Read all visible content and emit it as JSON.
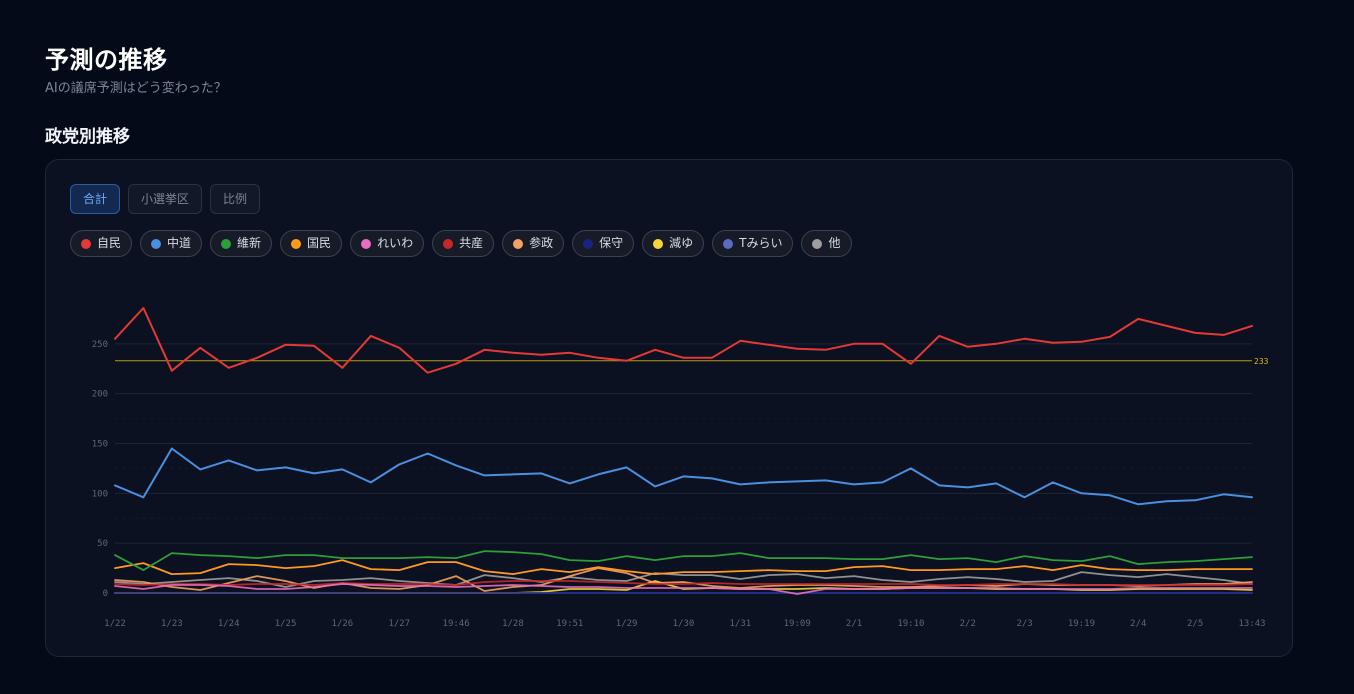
{
  "header": {
    "title": "予測の推移",
    "subtitle": "AIの議席予測はどう変わった？"
  },
  "section": {
    "title": "政党別推移"
  },
  "tabs": [
    {
      "label": "合計",
      "active": true
    },
    {
      "label": "小選挙区",
      "active": false
    },
    {
      "label": "比例",
      "active": false
    }
  ],
  "chart_data": {
    "type": "line",
    "ylim": [
      0,
      300
    ],
    "yticks": [
      0,
      50,
      100,
      150,
      200,
      250
    ],
    "reference_line": {
      "value": 233,
      "label": "233",
      "color": "#b89b12"
    },
    "x_tick_labels": [
      "1/22",
      "1/23",
      "1/24",
      "1/25",
      "1/26",
      "1/27",
      "19:46",
      "1/28",
      "19:51",
      "1/29",
      "1/30",
      "1/31",
      "19:09",
      "2/1",
      "19:10",
      "2/2",
      "2/3",
      "19:19",
      "2/4",
      "2/5",
      "13:43"
    ],
    "grid": true,
    "series": [
      {
        "name": "自民",
        "color": "#e53935",
        "values": [
          255,
          286,
          223,
          246,
          226,
          236,
          249,
          248,
          226,
          258,
          246,
          221,
          230,
          244,
          241,
          239,
          241,
          236,
          233,
          244,
          236,
          236,
          253,
          249,
          245,
          244,
          250,
          250,
          230,
          258,
          247,
          250,
          255,
          251,
          252,
          257,
          275,
          268,
          261,
          259,
          268
        ]
      },
      {
        "name": "中道",
        "color": "#4a8fe0",
        "values": [
          108,
          96,
          145,
          124,
          133,
          123,
          126,
          120,
          124,
          111,
          129,
          140,
          128,
          118,
          119,
          120,
          110,
          119,
          126,
          107,
          117,
          115,
          109,
          111,
          112,
          113,
          109,
          111,
          125,
          108,
          106,
          110,
          96,
          111,
          100,
          98,
          89,
          92,
          93,
          99,
          96
        ]
      },
      {
        "name": "維新",
        "color": "#2e9e3a",
        "values": [
          38,
          23,
          40,
          38,
          37,
          35,
          38,
          38,
          35,
          35,
          35,
          36,
          35,
          42,
          41,
          39,
          33,
          32,
          37,
          33,
          37,
          37,
          40,
          35,
          35,
          35,
          34,
          34,
          38,
          34,
          35,
          31,
          37,
          33,
          32,
          37,
          29,
          31,
          32,
          34,
          36
        ]
      },
      {
        "name": "国民",
        "color": "#ff9a1f",
        "values": [
          25,
          30,
          19,
          20,
          29,
          28,
          25,
          27,
          33,
          24,
          23,
          31,
          31,
          22,
          19,
          24,
          21,
          26,
          22,
          19,
          21,
          21,
          22,
          23,
          22,
          22,
          26,
          27,
          23,
          23,
          24,
          24,
          27,
          23,
          28,
          24,
          23,
          23,
          24,
          24,
          24
        ]
      },
      {
        "name": "れいわ",
        "color": "#e86fbf",
        "values": [
          7,
          4,
          8,
          8,
          7,
          4,
          4,
          6,
          9,
          8,
          7,
          7,
          6,
          7,
          8,
          7,
          6,
          6,
          5,
          5,
          5,
          5,
          4,
          4,
          -1,
          4,
          4,
          4,
          5,
          5,
          5,
          5,
          4,
          4,
          4,
          4,
          5,
          5,
          5,
          5,
          5
        ]
      },
      {
        "name": "共産",
        "color": "#c62828",
        "values": [
          9,
          8,
          9,
          9,
          8,
          9,
          9,
          8,
          10,
          9,
          9,
          9,
          8,
          11,
          12,
          12,
          12,
          11,
          10,
          9,
          9,
          10,
          9,
          9,
          9,
          9,
          9,
          9,
          9,
          8,
          8,
          9,
          9,
          9,
          8,
          8,
          8,
          8,
          8,
          8,
          9
        ]
      },
      {
        "name": "参政",
        "color": "#f4a261",
        "values": [
          13,
          11,
          6,
          3,
          10,
          17,
          12,
          5,
          10,
          5,
          4,
          8,
          17,
          2,
          6,
          8,
          17,
          25,
          20,
          10,
          11,
          7,
          5,
          7,
          8,
          8,
          7,
          6,
          6,
          7,
          8,
          7,
          9,
          8,
          8,
          8,
          7,
          8,
          9,
          9,
          11
        ]
      },
      {
        "name": "保守",
        "color": "#1a237e",
        "values": [
          0,
          0,
          0,
          0,
          0,
          0,
          0,
          0,
          0,
          0,
          0,
          0,
          0,
          0,
          0,
          0,
          0,
          0,
          0,
          0,
          0,
          0,
          0,
          0,
          0,
          0,
          0,
          0,
          0,
          0,
          0,
          0,
          0,
          0,
          0,
          0,
          0,
          0,
          0,
          0,
          0
        ]
      },
      {
        "name": "減ゆ",
        "color": "#f5d63a",
        "values": [
          0,
          0,
          0,
          0,
          0,
          0,
          0,
          0,
          0,
          0,
          0,
          0,
          0,
          0,
          0,
          1,
          4,
          4,
          3,
          12,
          4,
          5,
          4,
          4,
          4,
          5,
          4,
          4,
          5,
          5,
          5,
          4,
          4,
          4,
          3,
          3,
          4,
          4,
          4,
          4,
          3
        ]
      },
      {
        "name": "Tみらい",
        "color": "#5c6bc0",
        "values": [
          0,
          0,
          0,
          0,
          0,
          0,
          0,
          0,
          0,
          0,
          0,
          0,
          0,
          0,
          0,
          0,
          0,
          0,
          0,
          0,
          0,
          0,
          0,
          0,
          0,
          0,
          0,
          0,
          0,
          0,
          0,
          0,
          0,
          0,
          0,
          0,
          0,
          0,
          0,
          0,
          0
        ]
      },
      {
        "name": "他",
        "color": "#9e9e9e",
        "values": [
          11,
          9,
          11,
          13,
          15,
          12,
          6,
          12,
          13,
          15,
          12,
          10,
          8,
          18,
          15,
          11,
          16,
          13,
          12,
          20,
          18,
          18,
          14,
          18,
          19,
          15,
          17,
          13,
          11,
          14,
          16,
          14,
          11,
          12,
          21,
          18,
          16,
          19,
          16,
          13,
          9
        ]
      }
    ]
  }
}
